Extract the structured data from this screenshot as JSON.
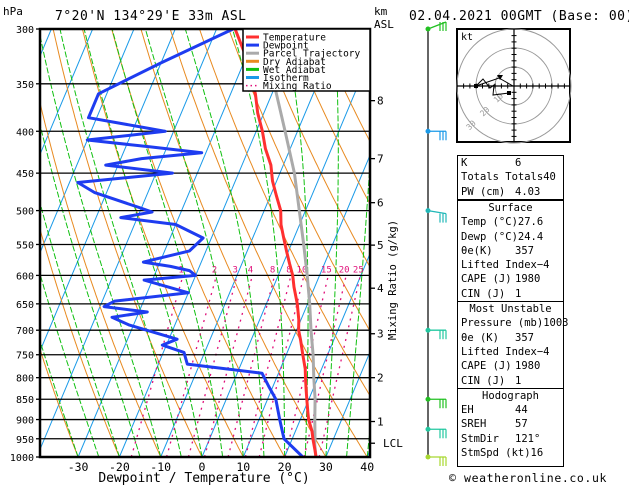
{
  "header": {
    "pressure_unit": "hPa",
    "location": "7°20'N  134°29'E  33m  ASL",
    "height_unit_line1": "km",
    "height_unit_line2": "ASL",
    "datetime": "02.04.2021  00GMT  (Base: 00)"
  },
  "legend": [
    {
      "label": "Temperature",
      "color": "#ff3030",
      "style": "solid"
    },
    {
      "label": "Dewpoint",
      "color": "#1e3cf0",
      "style": "solid"
    },
    {
      "label": "Parcel Trajectory",
      "color": "#aaaaaa",
      "style": "solid"
    },
    {
      "label": "Dry Adiabat",
      "color": "#e88a20",
      "style": "solid"
    },
    {
      "label": "Wet Adiabat",
      "color": "#10c010",
      "style": "solid"
    },
    {
      "label": "Isotherm",
      "color": "#1a9ae8",
      "style": "solid"
    },
    {
      "label": "Mixing Ratio",
      "color": "#e0107a",
      "style": "dotted"
    }
  ],
  "chart_data": {
    "type": "line",
    "title": "7°20'N 134°29'E 33m ASL",
    "xlabel": "Dewpoint / Temperature (°C)",
    "ylabel": "hPa",
    "right_axis_label": "Mixing Ratio (g/kg)",
    "xlim": [
      -40,
      40
    ],
    "ylim": [
      1000,
      300
    ],
    "x_ticks": [
      -30,
      -20,
      -10,
      0,
      10,
      20,
      30,
      40
    ],
    "pressure_levels": [
      300,
      350,
      400,
      450,
      500,
      550,
      600,
      650,
      700,
      750,
      800,
      850,
      900,
      950,
      1000
    ],
    "km_ticks": [
      {
        "label": "8",
        "p": 367
      },
      {
        "label": "7",
        "p": 432
      },
      {
        "label": "6",
        "p": 489
      },
      {
        "label": "5",
        "p": 551
      },
      {
        "label": "4",
        "p": 622
      },
      {
        "label": "3",
        "p": 707
      },
      {
        "label": "2",
        "p": 800
      },
      {
        "label": "1",
        "p": 905
      },
      {
        "label": "LCL",
        "p": 962
      }
    ],
    "mixing_ratio_labels": [
      "1",
      "2",
      "3",
      "4",
      "8",
      "8",
      "10",
      "15",
      "20",
      "25"
    ],
    "series": [
      {
        "name": "Temperature",
        "points": [
          [
            300,
            -35.5
          ],
          [
            320,
            -31
          ],
          [
            340,
            -27.5
          ],
          [
            360,
            -24
          ],
          [
            380,
            -21.5
          ],
          [
            400,
            -18.5
          ],
          [
            420,
            -16
          ],
          [
            440,
            -13
          ],
          [
            460,
            -11
          ],
          [
            480,
            -8.5
          ],
          [
            500,
            -6
          ],
          [
            520,
            -4.5
          ],
          [
            540,
            -2.5
          ],
          [
            560,
            -0.5
          ],
          [
            580,
            1.5
          ],
          [
            600,
            3.5
          ],
          [
            620,
            5
          ],
          [
            650,
            7.5
          ],
          [
            680,
            9.5
          ],
          [
            700,
            10.5
          ],
          [
            720,
            12
          ],
          [
            750,
            14
          ],
          [
            780,
            16
          ],
          [
            800,
            17
          ],
          [
            830,
            18.5
          ],
          [
            850,
            19.5
          ],
          [
            880,
            21
          ],
          [
            900,
            22
          ],
          [
            930,
            24
          ],
          [
            950,
            25
          ],
          [
            980,
            26.6
          ],
          [
            1000,
            27.6
          ]
        ]
      },
      {
        "name": "Dewpoint",
        "points": [
          [
            300,
            -36
          ],
          [
            330,
            -50
          ],
          [
            360,
            -62
          ],
          [
            385,
            -62
          ],
          [
            400,
            -42
          ],
          [
            410,
            -60
          ],
          [
            418,
            -44
          ],
          [
            425,
            -31
          ],
          [
            432,
            -45
          ],
          [
            440,
            -53
          ],
          [
            450,
            -36
          ],
          [
            462,
            -58
          ],
          [
            475,
            -53
          ],
          [
            495,
            -41
          ],
          [
            502,
            -37
          ],
          [
            510,
            -44
          ],
          [
            520,
            -30
          ],
          [
            540,
            -22
          ],
          [
            560,
            -24
          ],
          [
            578,
            -34
          ],
          [
            585,
            -27
          ],
          [
            592,
            -22
          ],
          [
            600,
            -20
          ],
          [
            608,
            -32
          ],
          [
            630,
            -20
          ],
          [
            645,
            -37
          ],
          [
            655,
            -39
          ],
          [
            665,
            -28
          ],
          [
            675,
            -36
          ],
          [
            690,
            -31
          ],
          [
            705,
            -24
          ],
          [
            718,
            -18
          ],
          [
            730,
            -21
          ],
          [
            745,
            -15
          ],
          [
            770,
            -13
          ],
          [
            790,
            6
          ],
          [
            820,
            9
          ],
          [
            850,
            12
          ],
          [
            900,
            15
          ],
          [
            950,
            18
          ],
          [
            1000,
            24.4
          ]
        ]
      },
      {
        "name": "Parcel Trajectory",
        "points": [
          [
            300,
            -30
          ],
          [
            350,
            -20.5
          ],
          [
            400,
            -13
          ],
          [
            450,
            -6.5
          ],
          [
            500,
            -1.5
          ],
          [
            550,
            3
          ],
          [
            600,
            7
          ],
          [
            650,
            10.5
          ],
          [
            700,
            13.5
          ],
          [
            750,
            16.5
          ],
          [
            800,
            19
          ],
          [
            850,
            21.5
          ],
          [
            900,
            23.5
          ],
          [
            950,
            25.5
          ],
          [
            965,
            26
          ],
          [
            1000,
            27.6
          ]
        ]
      }
    ]
  },
  "hodograph": {
    "unit_label": "kt",
    "ring_labels": [
      "10",
      "20",
      "30"
    ]
  },
  "indices": {
    "top": [
      {
        "label": "K",
        "value": "6"
      },
      {
        "label": "Totals Totals",
        "value": "40"
      },
      {
        "label": "PW (cm)",
        "value": "4.03"
      }
    ],
    "surface": {
      "title": "Surface",
      "rows": [
        {
          "label": "Temp (°C)",
          "value": "27.6"
        },
        {
          "label": "Dewp (°C)",
          "value": "24.4"
        },
        {
          "label": "θe(K)",
          "value": "357"
        },
        {
          "label": "Lifted Index",
          "value": "−4"
        },
        {
          "label": "CAPE (J)",
          "value": "1980"
        },
        {
          "label": "CIN (J)",
          "value": "1"
        }
      ]
    },
    "most_unstable": {
      "title": "Most Unstable",
      "rows": [
        {
          "label": "Pressure (mb)",
          "value": "1003"
        },
        {
          "label": "θe (K)",
          "value": "357"
        },
        {
          "label": "Lifted Index",
          "value": "−4"
        },
        {
          "label": "CAPE (J)",
          "value": "1980"
        },
        {
          "label": "CIN (J)",
          "value": "1"
        }
      ]
    },
    "hodograph_panel": {
      "title": "Hodograph",
      "rows": [
        {
          "label": "EH",
          "value": "44"
        },
        {
          "label": "SREH",
          "value": "57"
        },
        {
          "label": "StmDir",
          "value": "121°"
        },
        {
          "label": "StmSpd (kt)",
          "value": "16"
        }
      ]
    }
  },
  "wind_barbs": [
    {
      "p": 300,
      "color": "#22c022"
    },
    {
      "p": 400,
      "color": "#1a9ae8"
    },
    {
      "p": 500,
      "color": "#20b8b8"
    },
    {
      "p": 700,
      "color": "#22c8a0"
    },
    {
      "p": 850,
      "color": "#22c022"
    },
    {
      "p": 925,
      "color": "#22c8a0"
    },
    {
      "p": 1000,
      "color": "#a8d830"
    }
  ],
  "footer": {
    "copyright": "© weatheronline.co.uk"
  }
}
